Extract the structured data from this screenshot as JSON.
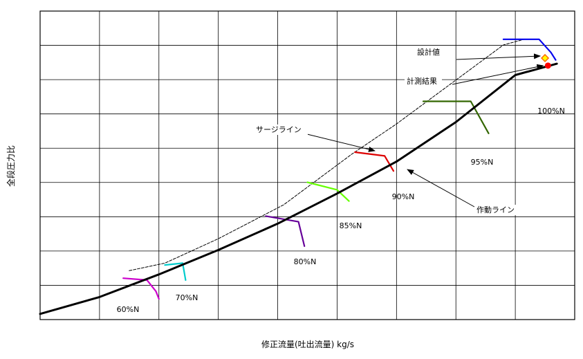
{
  "chart_data": {
    "type": "line",
    "title": "",
    "xlabel": "修正流量(吐出流量) kg/s",
    "ylabel": "全段圧力比",
    "grid": true,
    "legend": "none",
    "xlim": [
      0,
      9
    ],
    "ylim": [
      0,
      8.2
    ],
    "operating_line": {
      "label": "作動ライン",
      "color": "#000000",
      "x": [
        0.0,
        1.0,
        2.0,
        3.0,
        4.0,
        5.0,
        6.0,
        7.0,
        8.0,
        8.7
      ],
      "y": [
        0.15,
        0.6,
        1.2,
        1.85,
        2.55,
        3.35,
        4.2,
        5.25,
        6.5,
        6.8
      ]
    },
    "surge_line": {
      "label": "サージライン",
      "color": "#000000",
      "x": [
        1.5,
        2.1,
        3.0,
        4.1,
        5.25,
        6.0,
        7.8,
        8.15
      ],
      "y": [
        1.3,
        1.5,
        2.15,
        3.05,
        4.4,
        5.2,
        7.3,
        7.45
      ]
    },
    "speed_lines": [
      {
        "label": "60%N",
        "color": "#cc00cc",
        "x": [
          1.4,
          1.8,
          1.95,
          2.0
        ],
        "y": [
          1.1,
          1.05,
          0.75,
          0.55
        ]
      },
      {
        "label": "70%N",
        "color": "#00cccc",
        "x": [
          2.1,
          2.4,
          2.45
        ],
        "y": [
          1.45,
          1.5,
          1.05
        ]
      },
      {
        "label": "80%N",
        "color": "#660099",
        "x": [
          3.8,
          4.35,
          4.45
        ],
        "y": [
          2.75,
          2.6,
          1.95
        ]
      },
      {
        "label": "85%N",
        "color": "#66ff00",
        "x": [
          4.5,
          5.0,
          5.2
        ],
        "y": [
          3.65,
          3.45,
          3.15
        ]
      },
      {
        "label": "90%N",
        "color": "#dd0000",
        "x": [
          5.3,
          5.8,
          5.95
        ],
        "y": [
          4.45,
          4.35,
          3.95
        ]
      },
      {
        "label": "95%N",
        "color": "#336600",
        "x": [
          6.45,
          7.25,
          7.55
        ],
        "y": [
          5.8,
          5.8,
          4.95
        ]
      },
      {
        "label": "100%N",
        "color": "#0000ee",
        "x": [
          7.8,
          8.4,
          8.6,
          8.68
        ],
        "y": [
          7.45,
          7.45,
          7.1,
          6.9
        ]
      }
    ],
    "points": [
      {
        "label": "設計値",
        "x": 8.5,
        "y": 6.95,
        "marker": "diamond",
        "color": "#ff6600"
      },
      {
        "label": "計測結果",
        "x": 8.55,
        "y": 6.75,
        "marker": "circle",
        "color": "#ff0000"
      }
    ]
  }
}
